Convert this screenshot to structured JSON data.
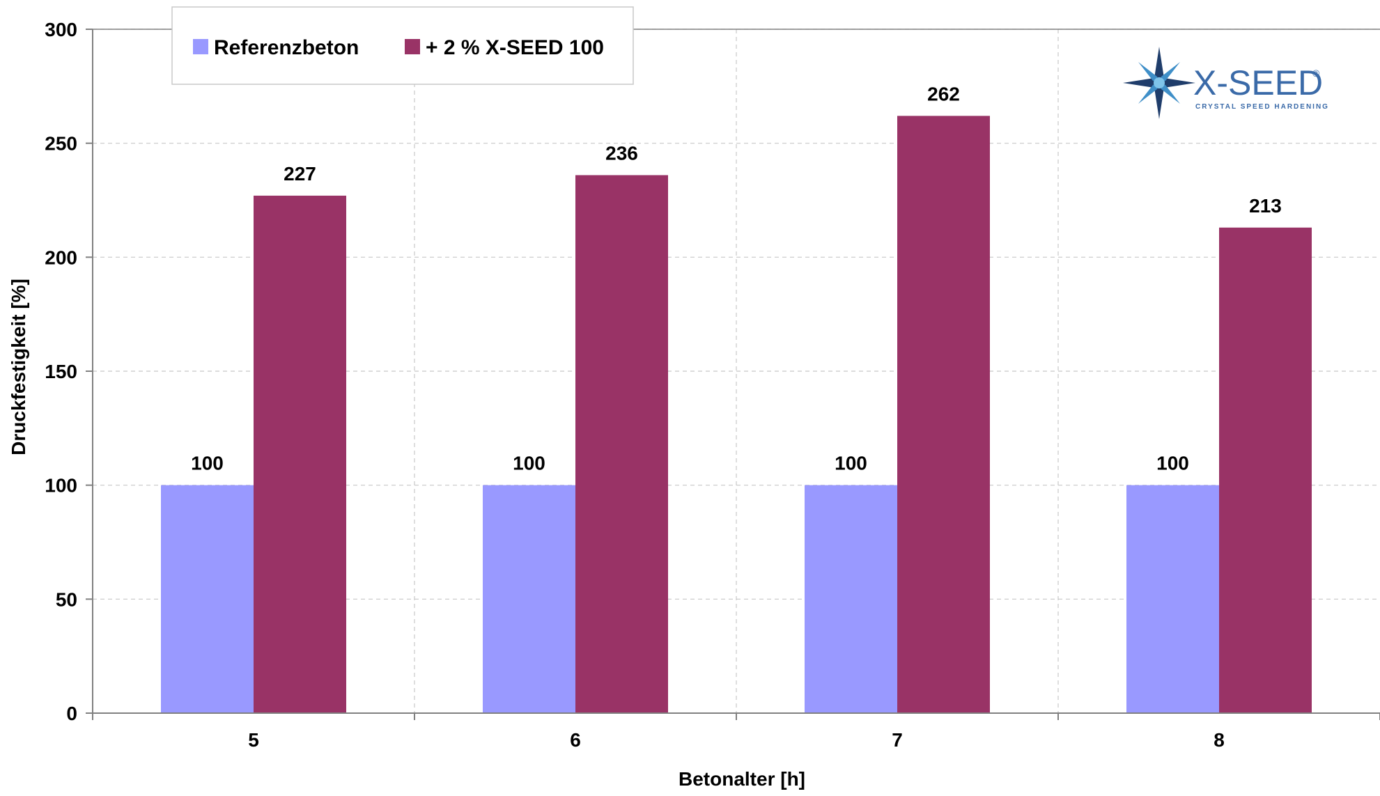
{
  "chart_data": {
    "type": "bar",
    "categories": [
      "5",
      "6",
      "7",
      "8"
    ],
    "series": [
      {
        "name": "Referenzbeton",
        "values": [
          100,
          100,
          100,
          100
        ],
        "color": "#9999ff"
      },
      {
        "name": "+ 2 % X-SEED 100",
        "values": [
          227,
          236,
          262,
          213
        ],
        "color": "#993366"
      }
    ],
    "xlabel": "Betonalter [h]",
    "ylabel": "Druckfestigkeit [%]",
    "ylim": [
      0,
      300
    ],
    "yticks": [
      "0",
      "50",
      "100",
      "150",
      "200",
      "250",
      "300"
    ],
    "grid": true,
    "legend_position": "top-left"
  },
  "logo": {
    "name": "X-SEED",
    "registered_mark": "®",
    "tagline": "CRYSTAL SPEED HARDENING",
    "icon": "star-burst-icon"
  }
}
